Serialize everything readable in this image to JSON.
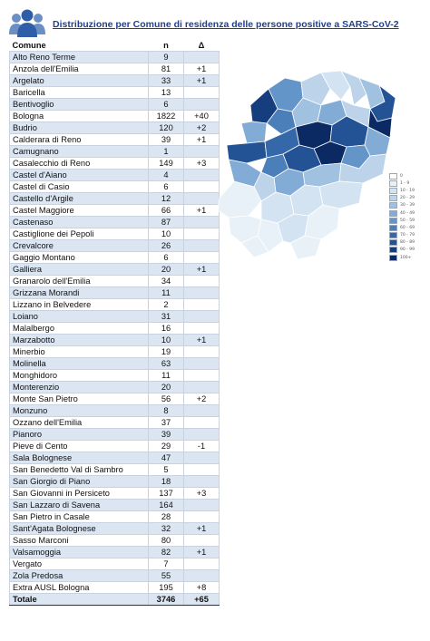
{
  "header": {
    "title": "Distribuzione per Comune di residenza delle persone positive a SARS-CoV-2",
    "logo_icon": "people-group-icon"
  },
  "table": {
    "columns": [
      "Comune",
      "n",
      "Δ"
    ],
    "rows": [
      {
        "comune": "Alto Reno Terme",
        "n": "9",
        "delta": ""
      },
      {
        "comune": "Anzola dell'Emilia",
        "n": "81",
        "delta": "+1"
      },
      {
        "comune": "Argelato",
        "n": "33",
        "delta": "+1"
      },
      {
        "comune": "Baricella",
        "n": "13",
        "delta": ""
      },
      {
        "comune": "Bentivoglio",
        "n": "6",
        "delta": ""
      },
      {
        "comune": "Bologna",
        "n": "1822",
        "delta": "+40"
      },
      {
        "comune": "Budrio",
        "n": "120",
        "delta": "+2"
      },
      {
        "comune": "Calderara di Reno",
        "n": "39",
        "delta": "+1"
      },
      {
        "comune": "Camugnano",
        "n": "1",
        "delta": ""
      },
      {
        "comune": "Casalecchio di Reno",
        "n": "149",
        "delta": "+3"
      },
      {
        "comune": "Castel d'Aiano",
        "n": "4",
        "delta": ""
      },
      {
        "comune": "Castel di Casio",
        "n": "6",
        "delta": ""
      },
      {
        "comune": "Castello d'Argile",
        "n": "12",
        "delta": ""
      },
      {
        "comune": "Castel Maggiore",
        "n": "66",
        "delta": "+1"
      },
      {
        "comune": "Castenaso",
        "n": "87",
        "delta": ""
      },
      {
        "comune": "Castiglione dei Pepoli",
        "n": "10",
        "delta": ""
      },
      {
        "comune": "Crevalcore",
        "n": "26",
        "delta": ""
      },
      {
        "comune": "Gaggio Montano",
        "n": "6",
        "delta": ""
      },
      {
        "comune": "Galliera",
        "n": "20",
        "delta": "+1"
      },
      {
        "comune": "Granarolo dell'Emilia",
        "n": "34",
        "delta": ""
      },
      {
        "comune": "Grizzana Morandi",
        "n": "11",
        "delta": ""
      },
      {
        "comune": "Lizzano in Belvedere",
        "n": "2",
        "delta": ""
      },
      {
        "comune": "Loiano",
        "n": "31",
        "delta": ""
      },
      {
        "comune": "Malalbergo",
        "n": "16",
        "delta": ""
      },
      {
        "comune": "Marzabotto",
        "n": "10",
        "delta": "+1"
      },
      {
        "comune": "Minerbio",
        "n": "19",
        "delta": ""
      },
      {
        "comune": "Molinella",
        "n": "63",
        "delta": ""
      },
      {
        "comune": "Monghidoro",
        "n": "11",
        "delta": ""
      },
      {
        "comune": "Monterenzio",
        "n": "20",
        "delta": ""
      },
      {
        "comune": "Monte San Pietro",
        "n": "56",
        "delta": "+2"
      },
      {
        "comune": "Monzuno",
        "n": "8",
        "delta": ""
      },
      {
        "comune": "Ozzano dell'Emilia",
        "n": "37",
        "delta": ""
      },
      {
        "comune": "Pianoro",
        "n": "39",
        "delta": ""
      },
      {
        "comune": "Pieve di Cento",
        "n": "29",
        "delta": "-1"
      },
      {
        "comune": "Sala Bolognese",
        "n": "47",
        "delta": ""
      },
      {
        "comune": "San Benedetto Val di Sambro",
        "n": "5",
        "delta": ""
      },
      {
        "comune": "San Giorgio di Piano",
        "n": "18",
        "delta": ""
      },
      {
        "comune": "San Giovanni in Persiceto",
        "n": "137",
        "delta": "+3"
      },
      {
        "comune": "San Lazzaro di Savena",
        "n": "164",
        "delta": ""
      },
      {
        "comune": "San Pietro in Casale",
        "n": "28",
        "delta": ""
      },
      {
        "comune": "Sant'Agata Bolognese",
        "n": "32",
        "delta": "+1"
      },
      {
        "comune": "Sasso Marconi",
        "n": "80",
        "delta": ""
      },
      {
        "comune": "Valsamoggia",
        "n": "82",
        "delta": "+1"
      },
      {
        "comune": "Vergato",
        "n": "7",
        "delta": ""
      },
      {
        "comune": "Zola Predosa",
        "n": "55",
        "delta": ""
      },
      {
        "comune": "Extra AUSL Bologna",
        "n": "195",
        "delta": "+8"
      }
    ],
    "total": {
      "label": "Totale",
      "n": "3746",
      "delta": "+65"
    }
  },
  "legend": {
    "items": [
      {
        "label": "0",
        "color": "#ffffff"
      },
      {
        "label": "1 - 9",
        "color": "#e9f1f8"
      },
      {
        "label": "10 - 19",
        "color": "#d4e3f1"
      },
      {
        "label": "20 - 29",
        "color": "#bcd3e9"
      },
      {
        "label": "30 - 39",
        "color": "#a1c1e0"
      },
      {
        "label": "40 - 49",
        "color": "#82acd5"
      },
      {
        "label": "50 - 59",
        "color": "#6395c8"
      },
      {
        "label": "60 - 69",
        "color": "#4a7fba"
      },
      {
        "label": "70 - 79",
        "color": "#3468a8"
      },
      {
        "label": "80 - 89",
        "color": "#235295"
      },
      {
        "label": "90 - 99",
        "color": "#163d7e"
      },
      {
        "label": "100+",
        "color": "#0b2a63"
      }
    ]
  }
}
